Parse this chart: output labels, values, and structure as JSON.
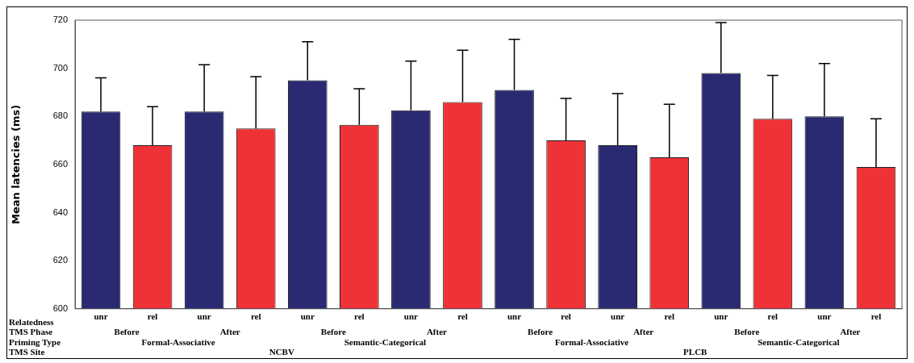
{
  "chart_data": {
    "type": "bar",
    "ylabel": "Mean latencies (ms)",
    "categories": [
      "unr",
      "rel",
      "unr",
      "rel",
      "unr",
      "rel",
      "unr",
      "rel",
      "unr",
      "rel",
      "unr",
      "rel",
      "unr",
      "rel",
      "unr",
      "rel"
    ],
    "values": [
      682,
      668,
      682,
      675,
      695,
      676.5,
      682.5,
      686,
      691,
      670,
      668,
      663,
      698,
      679,
      680,
      659
    ],
    "colors": [
      "#2a2a72",
      "#ee3237",
      "#2a2a72",
      "#ee3237",
      "#2a2a72",
      "#ee3237",
      "#2a2a72",
      "#ee3237",
      "#2a2a72",
      "#ee3237",
      "#2a2a72",
      "#ee3237",
      "#2a2a72",
      "#ee3237",
      "#2a2a72",
      "#ee3237"
    ],
    "errors": [
      [
        682,
        696
      ],
      [
        668,
        684
      ],
      [
        682,
        701.5
      ],
      [
        675,
        696.5
      ],
      [
        695,
        711
      ],
      [
        676.5,
        691.5
      ],
      [
        682.5,
        703
      ],
      [
        686,
        707.5
      ],
      [
        691,
        712
      ],
      [
        670,
        687.5
      ],
      [
        668,
        689.5
      ],
      [
        663,
        685
      ],
      [
        698,
        719
      ],
      [
        679,
        697
      ],
      [
        680,
        702
      ],
      [
        659,
        679
      ]
    ],
    "ylim": [
      600,
      720
    ],
    "yticks": [
      600,
      620,
      640,
      660,
      680,
      700,
      720
    ],
    "grid": false,
    "legend": false,
    "annotations": [
      "Relatedness",
      "TMS Phase",
      "Priming Type",
      "TMS Site",
      "Before",
      "After",
      "Before",
      "After",
      "Before",
      "After",
      "Before",
      "After",
      "Formal-Associative",
      "Semantic-Categorical",
      "Formal-Associative",
      "Semantic-Categorical",
      "NCBV",
      "PLCB"
    ]
  }
}
